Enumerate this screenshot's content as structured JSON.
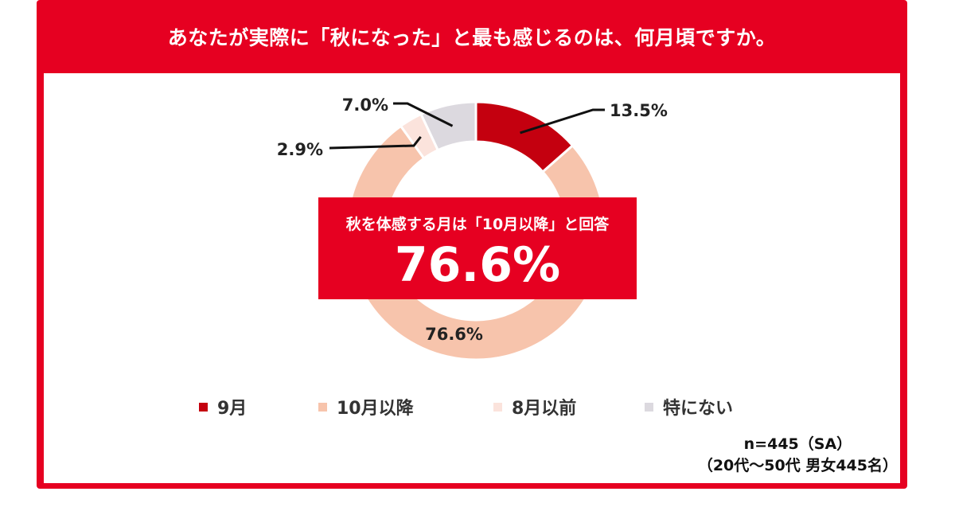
{
  "title": "あなたが実際に「秋になった」と最も感じるのは、何月頃ですか。",
  "chart_data": {
    "type": "pie",
    "donut": true,
    "categories": [
      "9月",
      "10月以降",
      "8月以前",
      "特にない"
    ],
    "values": [
      13.5,
      76.6,
      2.9,
      7.0
    ],
    "data_labels": [
      "13.5%",
      "76.6%",
      "2.9%",
      "7.0%"
    ],
    "colors": [
      "#c4000f",
      "#f7c4ac",
      "#fbe3dc",
      "#dcd9df"
    ],
    "legend_position": "bottom"
  },
  "callout": {
    "subtitle": "秋を体感する月は「10月以降」と回答",
    "value": "76.6%"
  },
  "note": {
    "line1": "n=445（SA）",
    "line2": "（20代～50代 男女445名）"
  }
}
